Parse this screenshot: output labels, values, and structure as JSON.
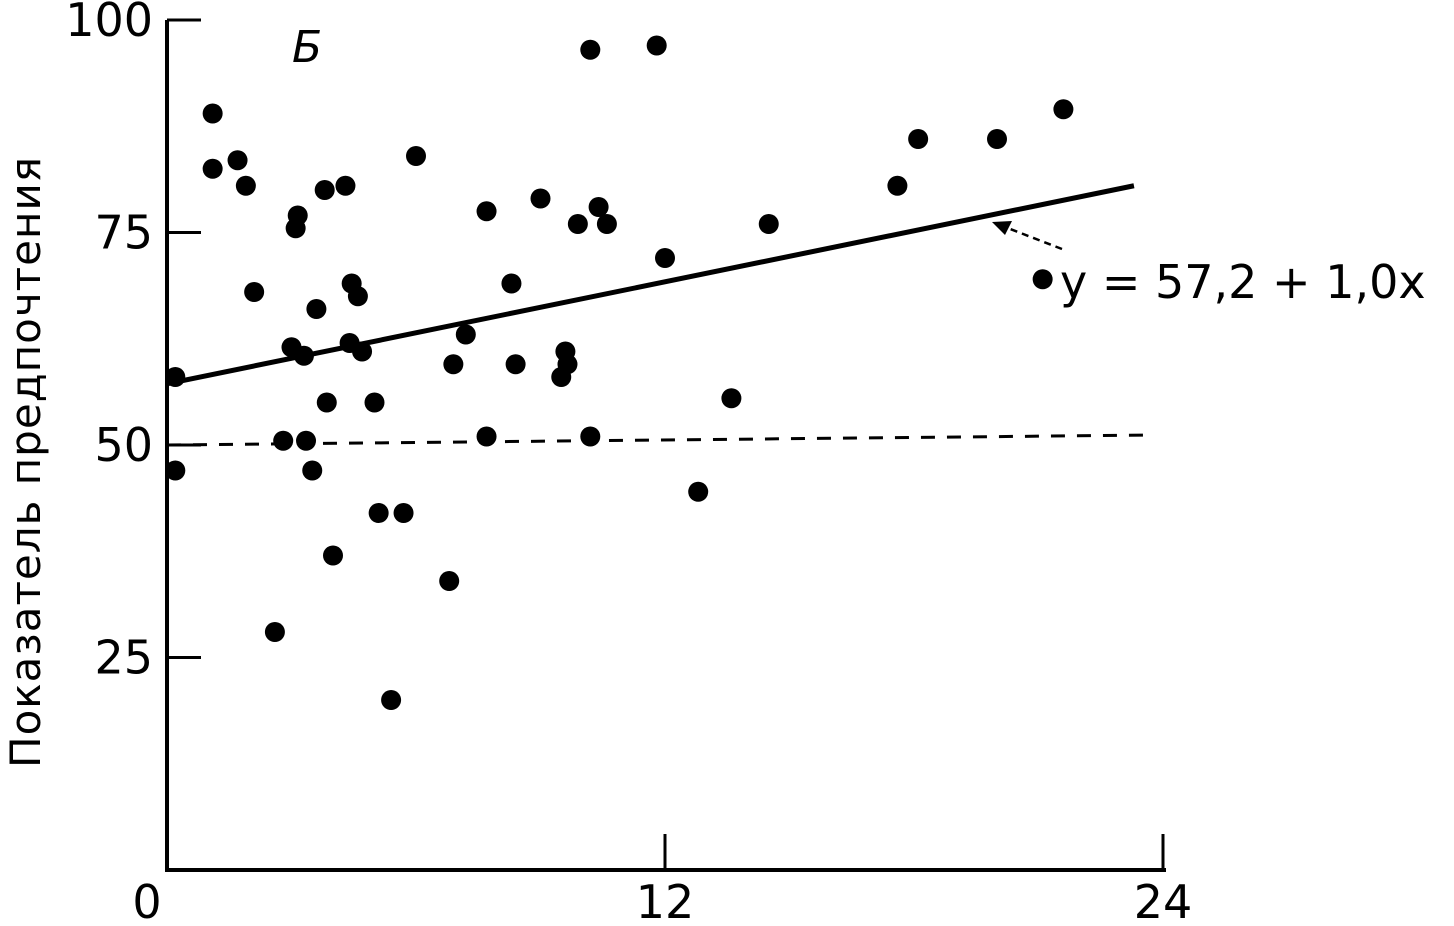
{
  "chart_data": {
    "type": "scatter",
    "panel_label": "Б",
    "ylabel": "Показатель предпочтения",
    "xlabel": "",
    "xlim": [
      0,
      24
    ],
    "ylim": [
      0,
      100
    ],
    "x_ticks": [
      "0",
      "12",
      "24"
    ],
    "y_ticks": [
      "25",
      "50",
      "75",
      "100"
    ],
    "grid": false,
    "reference_line": {
      "y": 50,
      "style": "dashed"
    },
    "regression": {
      "intercept": 57.2,
      "slope": 1.0,
      "x_range": [
        0,
        23.3
      ],
      "label": "y = 57,2 + 1,0x"
    },
    "points": [
      {
        "x": 0.2,
        "y": 58
      },
      {
        "x": 0.2,
        "y": 47
      },
      {
        "x": 1.1,
        "y": 89
      },
      {
        "x": 1.1,
        "y": 82.5
      },
      {
        "x": 1.7,
        "y": 83.5
      },
      {
        "x": 1.9,
        "y": 80.5
      },
      {
        "x": 2.1,
        "y": 68
      },
      {
        "x": 2.6,
        "y": 28
      },
      {
        "x": 2.8,
        "y": 50.5
      },
      {
        "x": 3.0,
        "y": 61.5
      },
      {
        "x": 3.1,
        "y": 75.5
      },
      {
        "x": 3.15,
        "y": 77
      },
      {
        "x": 3.3,
        "y": 60.5
      },
      {
        "x": 3.35,
        "y": 50.5
      },
      {
        "x": 3.5,
        "y": 47
      },
      {
        "x": 3.6,
        "y": 66
      },
      {
        "x": 3.8,
        "y": 80
      },
      {
        "x": 3.85,
        "y": 55
      },
      {
        "x": 4.0,
        "y": 37
      },
      {
        "x": 4.3,
        "y": 80.5
      },
      {
        "x": 4.4,
        "y": 62
      },
      {
        "x": 4.45,
        "y": 69
      },
      {
        "x": 4.6,
        "y": 67.5
      },
      {
        "x": 4.7,
        "y": 61
      },
      {
        "x": 5.0,
        "y": 55
      },
      {
        "x": 5.1,
        "y": 42
      },
      {
        "x": 5.4,
        "y": 20
      },
      {
        "x": 5.7,
        "y": 42
      },
      {
        "x": 6.0,
        "y": 84
      },
      {
        "x": 6.8,
        "y": 34
      },
      {
        "x": 6.9,
        "y": 59.5
      },
      {
        "x": 7.2,
        "y": 63
      },
      {
        "x": 7.7,
        "y": 77.5
      },
      {
        "x": 7.7,
        "y": 51
      },
      {
        "x": 8.3,
        "y": 69
      },
      {
        "x": 8.4,
        "y": 59.5
      },
      {
        "x": 9.0,
        "y": 79
      },
      {
        "x": 9.5,
        "y": 58
      },
      {
        "x": 9.6,
        "y": 61
      },
      {
        "x": 9.65,
        "y": 59.5
      },
      {
        "x": 9.9,
        "y": 76
      },
      {
        "x": 10.2,
        "y": 96.5
      },
      {
        "x": 10.2,
        "y": 51
      },
      {
        "x": 10.4,
        "y": 78
      },
      {
        "x": 10.6,
        "y": 76
      },
      {
        "x": 11.8,
        "y": 97
      },
      {
        "x": 12.0,
        "y": 72
      },
      {
        "x": 12.8,
        "y": 44.5
      },
      {
        "x": 13.6,
        "y": 55.5
      },
      {
        "x": 14.5,
        "y": 76
      },
      {
        "x": 17.6,
        "y": 80.5
      },
      {
        "x": 18.1,
        "y": 86
      },
      {
        "x": 20.0,
        "y": 86
      },
      {
        "x": 21.1,
        "y": 69.5
      },
      {
        "x": 21.6,
        "y": 89.5
      }
    ]
  }
}
